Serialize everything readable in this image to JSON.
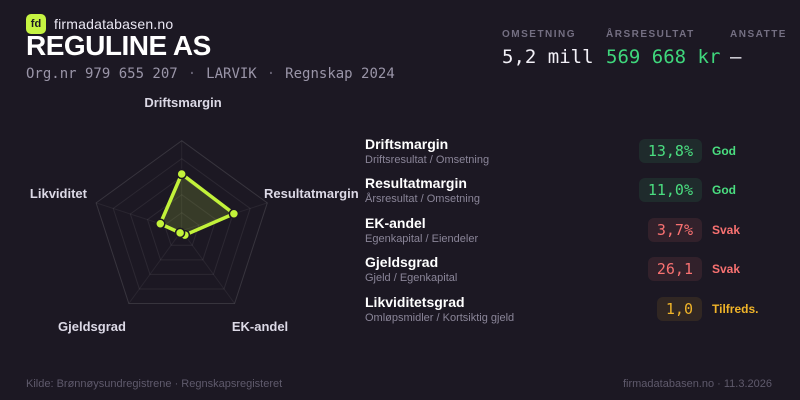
{
  "brand": {
    "logo_text": "fd",
    "site_name": "firmadatabasen.no"
  },
  "header": {
    "company_name": "REGULINE AS",
    "org_number": "Org.nr 979 655 207",
    "separator": "·",
    "location": "LARVIK",
    "report_year": "Regnskap 2024",
    "stats": [
      {
        "label": "OMSETNING",
        "value": "5,2 mill"
      },
      {
        "label": "ÅRSRESULTAT",
        "value": "569 668 kr"
      },
      {
        "label": "ANSATTE",
        "value": "–"
      }
    ]
  },
  "chart_data": {
    "type": "radar",
    "categories": [
      "Driftsmargin",
      "Resultatmargin",
      "EK-andel",
      "Gjeldsgrad",
      "Likviditet"
    ],
    "values": [
      0.63,
      0.61,
      0.06,
      0.03,
      0.25
    ],
    "value_range": [
      0,
      1
    ],
    "rings": 5,
    "grid": "pentagon, 5 concentric rings with spokes",
    "legend_position": "none",
    "stroke_color": "#c2f23a",
    "fill_color": "rgba(198,244,66,0.16)",
    "dot_color": "#c2f23a"
  },
  "metrics": [
    {
      "name": "Driftsmargin",
      "formula": "Driftsresultat / Omsetning",
      "value": "13,8%",
      "status": "God",
      "tone": "good"
    },
    {
      "name": "Resultatmargin",
      "formula": "Årsresultat / Omsetning",
      "value": "11,0%",
      "status": "God",
      "tone": "good"
    },
    {
      "name": "EK-andel",
      "formula": "Egenkapital / Eiendeler",
      "value": "3,7%",
      "status": "Svak",
      "tone": "bad"
    },
    {
      "name": "Gjeldsgrad",
      "formula": "Gjeld / Egenkapital",
      "value": "26,1",
      "status": "Svak",
      "tone": "bad"
    },
    {
      "name": "Likviditetsgrad",
      "formula": "Omløpsmidler / Kortsiktig gjeld",
      "value": "1,0",
      "status": "Tilfreds.",
      "tone": "warn"
    }
  ],
  "footer": {
    "source": "Kilde: Brønnøysundregistrene · Regnskapsregisteret",
    "site_date": "firmadatabasen.no · 11.3.2026"
  },
  "colors": {
    "background": "#1c1823",
    "accent_lime": "#c6f442",
    "accent_green": "#3fd77c",
    "status_red": "#f87171",
    "status_amber": "#f0b429"
  }
}
